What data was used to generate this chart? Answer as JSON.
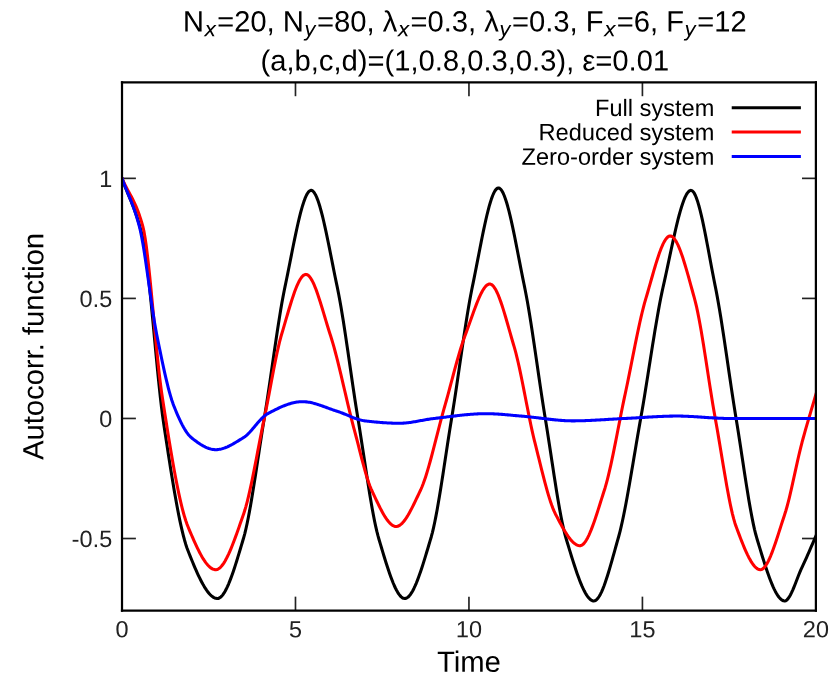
{
  "chart_data": {
    "type": "line",
    "title": "N$_{x}$=20, N$_{y}$=80, λ$_{x}$=0.3, λ$_{y}$=0.3, F$_{x}$=6, F$_{y}$=12",
    "subtitle": "(a,b,c,d)=(1,0.8,0.3,0.3), ε=0.01",
    "xlabel": "Time",
    "ylabel": "Autocorr. function",
    "xlim": [
      0,
      20
    ],
    "ylim": [
      -0.8,
      1.4
    ],
    "xticks": [
      0,
      5,
      10,
      15,
      20
    ],
    "yticks": [
      -0.5,
      0,
      0.5,
      1
    ],
    "grid": false,
    "legend": "top right",
    "marker": "none",
    "line_style": "solid",
    "series": [
      {
        "name": "Full system",
        "color": "#000000",
        "x": [
          0,
          0.6,
          1.2,
          1.9,
          2.75,
          3.5,
          4.1,
          4.7,
          5.45,
          6.2,
          6.8,
          7.4,
          8.15,
          8.9,
          9.5,
          10.1,
          10.85,
          11.6,
          12.2,
          12.8,
          13.6,
          14.3,
          14.95,
          15.6,
          16.4,
          17.1,
          17.7,
          18.3,
          19.1,
          19.6,
          20
        ],
        "values": [
          1,
          0.75,
          -0.02,
          -0.55,
          -0.75,
          -0.5,
          0,
          0.55,
          0.95,
          0.55,
          0,
          -0.5,
          -0.75,
          -0.5,
          0,
          0.55,
          0.96,
          0.55,
          0,
          -0.5,
          -0.76,
          -0.5,
          0,
          0.55,
          0.95,
          0.55,
          0,
          -0.5,
          -0.76,
          -0.62,
          -0.49
        ]
      },
      {
        "name": "Reduced system",
        "color": "#ff0000",
        "x": [
          0,
          0.6,
          1.15,
          1.9,
          2.7,
          3.5,
          4.1,
          4.6,
          5.3,
          6.0,
          6.7,
          7.2,
          7.9,
          8.6,
          9.3,
          9.9,
          10.6,
          11.3,
          11.9,
          12.5,
          13.2,
          13.9,
          14.5,
          15.1,
          15.8,
          16.5,
          17.1,
          17.7,
          18.4,
          19.1,
          19.6,
          20
        ],
        "values": [
          1,
          0.8,
          0.1,
          -0.45,
          -0.63,
          -0.4,
          0,
          0.35,
          0.6,
          0.35,
          -0.05,
          -0.3,
          -0.45,
          -0.3,
          0.05,
          0.35,
          0.56,
          0.3,
          -0.1,
          -0.4,
          -0.53,
          -0.3,
          0.1,
          0.5,
          0.76,
          0.5,
          0,
          -0.45,
          -0.63,
          -0.4,
          -0.1,
          0.1
        ]
      },
      {
        "name": "Zero-order system",
        "color": "#0000ff",
        "x": [
          0,
          0.5,
          1.0,
          1.5,
          2.0,
          2.7,
          3.5,
          4.2,
          5.2,
          6.2,
          7.0,
          8.0,
          9.0,
          10.5,
          11.5,
          13.0,
          14.5,
          16.0,
          17.5,
          20
        ],
        "values": [
          1,
          0.8,
          0.35,
          0.05,
          -0.08,
          -0.13,
          -0.08,
          0.02,
          0.07,
          0.03,
          -0.01,
          -0.02,
          0,
          0.02,
          0.01,
          -0.01,
          0,
          0.01,
          0,
          0
        ]
      }
    ]
  }
}
